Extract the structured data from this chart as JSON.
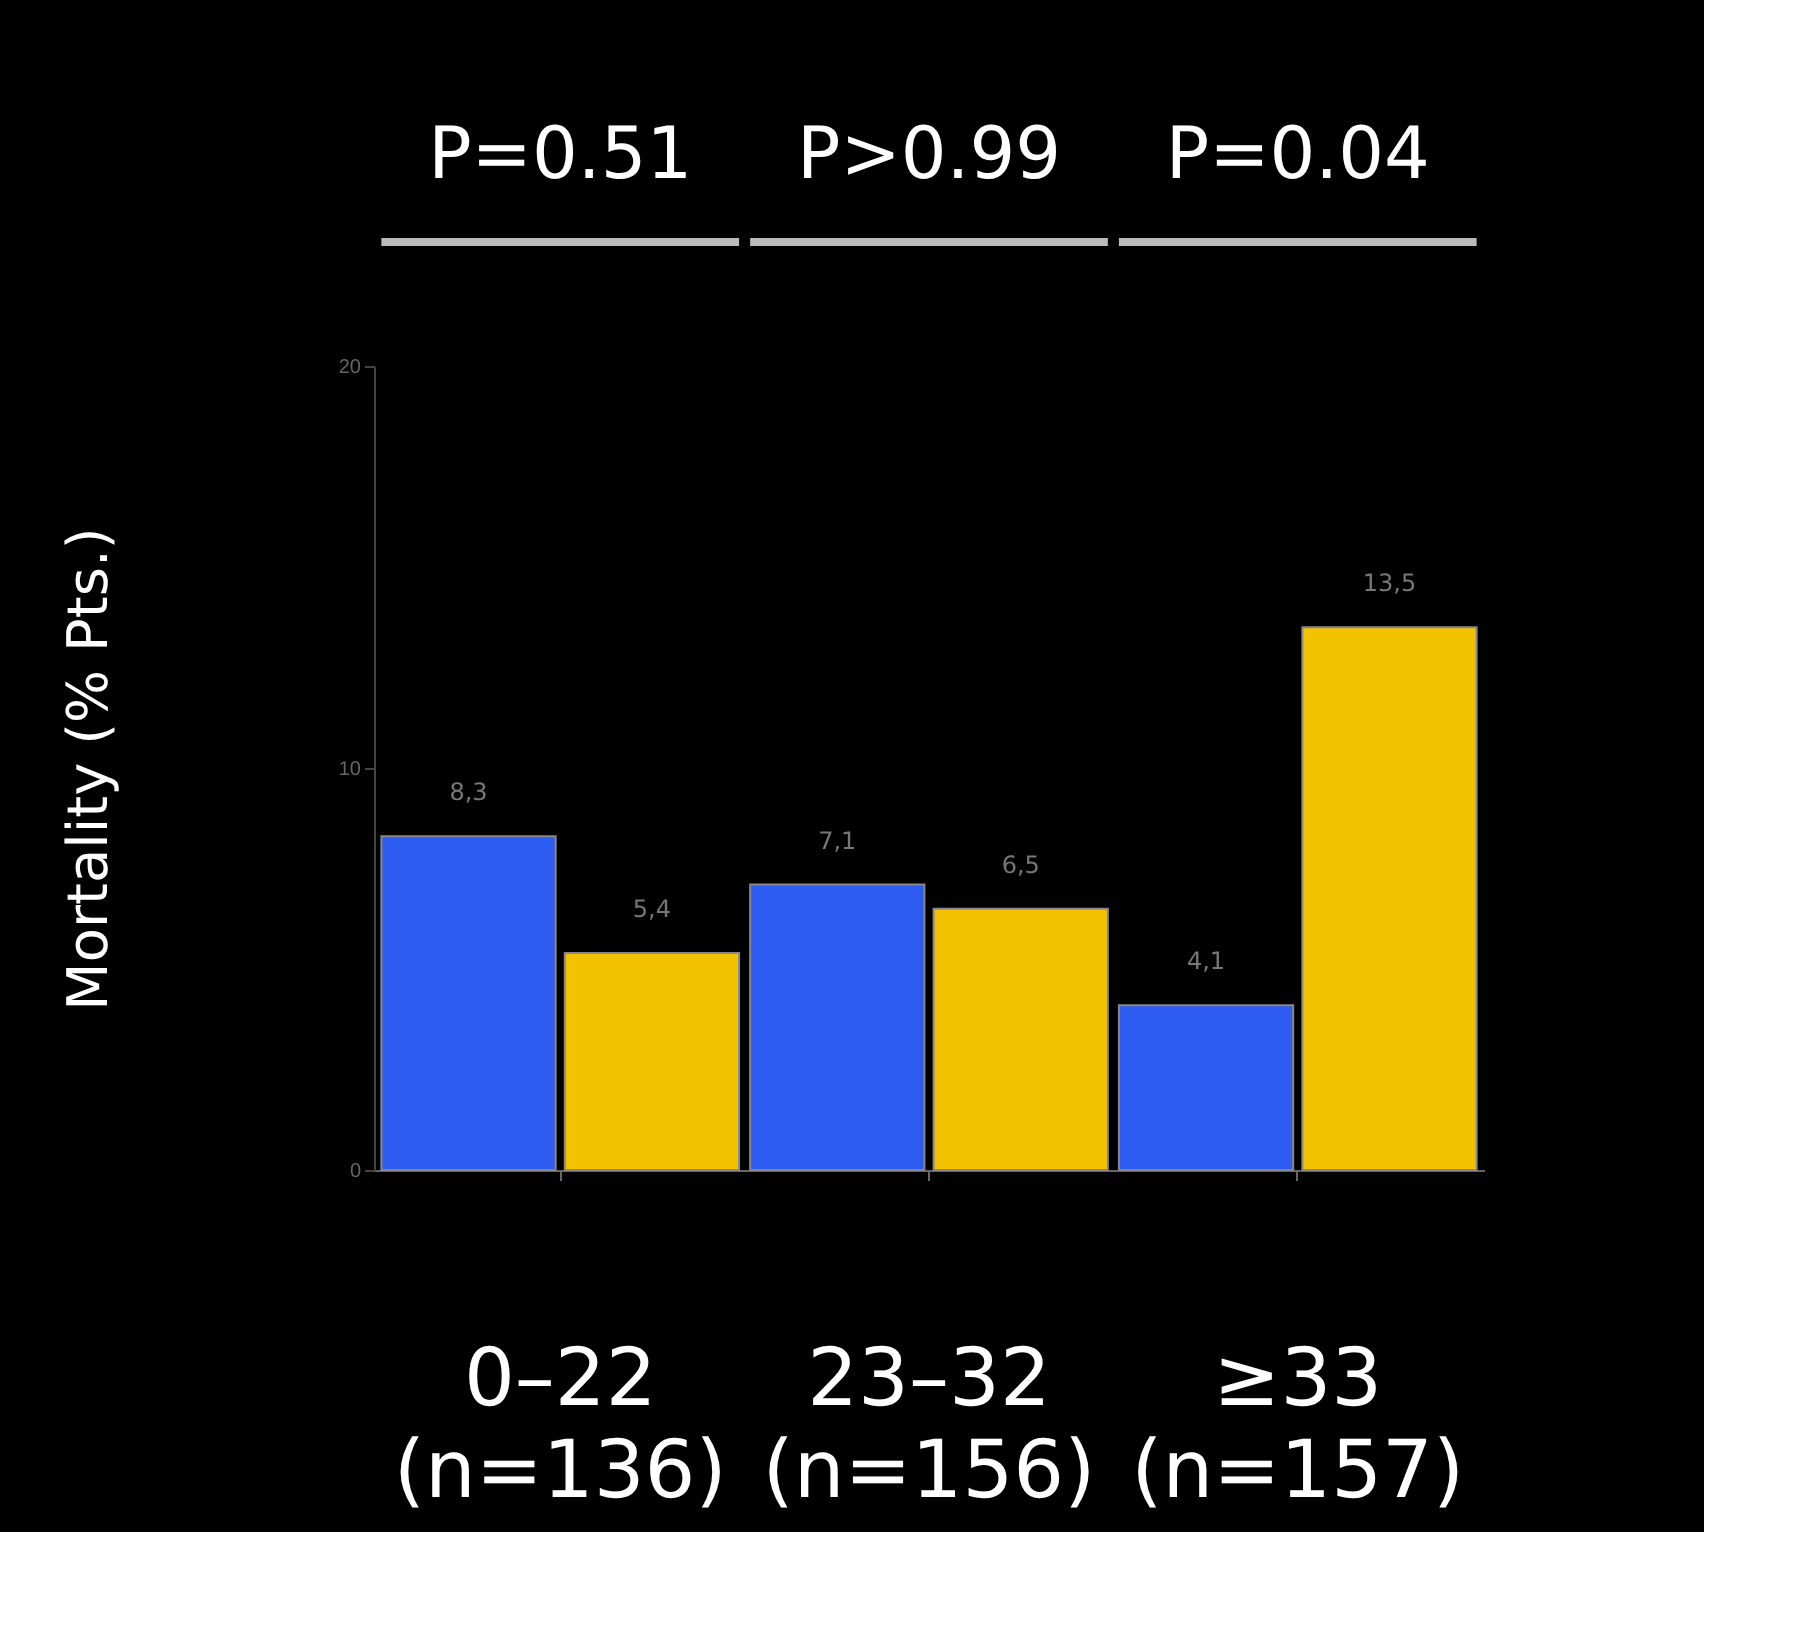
{
  "chart_data": {
    "type": "bar",
    "ylabel": "Mortality (% Pts.)",
    "categories": [
      "0–22\n(n=136)",
      "23–32\n(n=156)",
      "≥33\n(n=157)"
    ],
    "series": [
      {
        "color": "#2e5cf0",
        "values": [
          8.3,
          7.1,
          4.1
        ],
        "value_labels": [
          "8,3",
          "7,1",
          "4,1"
        ]
      },
      {
        "color": "#f2c200",
        "values": [
          5.4,
          6.5,
          13.5
        ],
        "value_labels": [
          "5,4",
          "6,5",
          "13,5"
        ]
      }
    ],
    "ylim": [
      0,
      20
    ],
    "yticks": [
      0,
      10,
      20
    ],
    "grid": false,
    "annotations": [
      "P=0.51",
      "P>0.99",
      "P=0.04"
    ]
  }
}
